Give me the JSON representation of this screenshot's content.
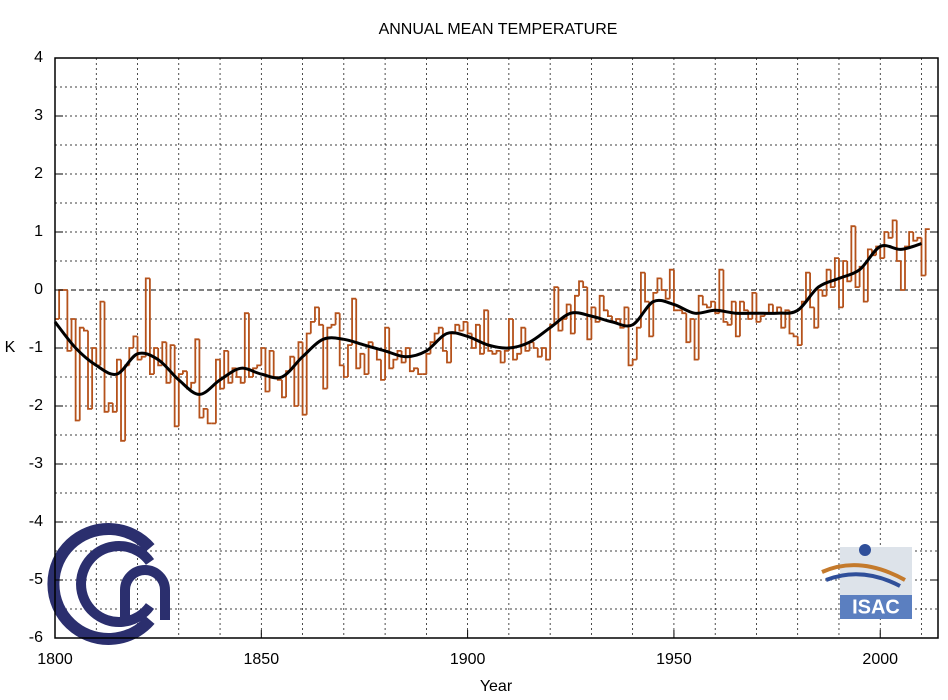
{
  "chart_data": {
    "type": "step",
    "title": "ANNUAL MEAN TEMPERATURE",
    "x_label": "Year",
    "y_label": "K",
    "logo_text": "ISAC",
    "xlim": [
      1800,
      2014
    ],
    "ylim": [
      -6,
      4
    ],
    "xticks": [
      1800,
      1850,
      1900,
      1950,
      2000
    ],
    "yticks": [
      -6,
      -5,
      -4,
      -3,
      -2,
      -1,
      0,
      1,
      2,
      3,
      4
    ],
    "xgrid": [
      1810,
      1820,
      1830,
      1840,
      1850,
      1860,
      1870,
      1880,
      1890,
      1900,
      1910,
      1920,
      1930,
      1940,
      1950,
      1960,
      1970,
      1980,
      1990,
      2000,
      2010
    ],
    "ygrid": [
      -5.5,
      -5,
      -4.5,
      -4,
      -3.5,
      -3,
      -2.5,
      -2,
      -1.5,
      -1,
      -0.5,
      0.5,
      1,
      1.5,
      2,
      2.5,
      3,
      3.5
    ],
    "grid": true,
    "zero_line": 0,
    "x": [
      1800,
      1801,
      1802,
      1803,
      1804,
      1805,
      1806,
      1807,
      1808,
      1809,
      1810,
      1811,
      1812,
      1813,
      1814,
      1815,
      1816,
      1817,
      1818,
      1819,
      1820,
      1821,
      1822,
      1823,
      1824,
      1825,
      1826,
      1827,
      1828,
      1829,
      1830,
      1831,
      1832,
      1833,
      1834,
      1835,
      1836,
      1837,
      1838,
      1839,
      1840,
      1841,
      1842,
      1843,
      1844,
      1845,
      1846,
      1847,
      1848,
      1849,
      1850,
      1851,
      1852,
      1853,
      1854,
      1855,
      1856,
      1857,
      1858,
      1859,
      1860,
      1861,
      1862,
      1863,
      1864,
      1865,
      1866,
      1867,
      1868,
      1869,
      1870,
      1871,
      1872,
      1873,
      1874,
      1875,
      1876,
      1877,
      1878,
      1879,
      1880,
      1881,
      1882,
      1883,
      1884,
      1885,
      1886,
      1887,
      1888,
      1889,
      1890,
      1891,
      1892,
      1893,
      1894,
      1895,
      1896,
      1897,
      1898,
      1899,
      1900,
      1901,
      1902,
      1903,
      1904,
      1905,
      1906,
      1907,
      1908,
      1909,
      1910,
      1911,
      1912,
      1913,
      1914,
      1915,
      1916,
      1917,
      1918,
      1919,
      1920,
      1921,
      1922,
      1923,
      1924,
      1925,
      1926,
      1927,
      1928,
      1929,
      1930,
      1931,
      1932,
      1933,
      1934,
      1935,
      1936,
      1937,
      1938,
      1939,
      1940,
      1941,
      1942,
      1943,
      1944,
      1945,
      1946,
      1947,
      1948,
      1949,
      1950,
      1951,
      1952,
      1953,
      1954,
      1955,
      1956,
      1957,
      1958,
      1959,
      1960,
      1961,
      1962,
      1963,
      1964,
      1965,
      1966,
      1967,
      1968,
      1969,
      1970,
      1971,
      1972,
      1973,
      1974,
      1975,
      1976,
      1977,
      1978,
      1979,
      1980,
      1981,
      1982,
      1983,
      1984,
      1985,
      1986,
      1987,
      1988,
      1989,
      1990,
      1991,
      1992,
      1993,
      1994,
      1995,
      1996,
      1997,
      1998,
      1999,
      2000,
      2001,
      2002,
      2003,
      2004,
      2005,
      2006,
      2007,
      2008,
      2009,
      2010,
      2011
    ],
    "series": [
      {
        "color": "#b5521b",
        "style": "step",
        "values": [
          -0.5,
          0,
          0,
          -1.05,
          -0.5,
          -2.25,
          -0.65,
          -0.7,
          -2.05,
          -1.0,
          -1.3,
          -0.2,
          -2.1,
          -1.95,
          -2.1,
          -1.2,
          -2.6,
          -1.3,
          -1.0,
          -0.8,
          -1.2,
          -1.15,
          0.2,
          -1.45,
          -1.0,
          -1.3,
          -0.9,
          -1.6,
          -0.95,
          -2.35,
          -1.45,
          -1.4,
          -1.7,
          -1.6,
          -0.85,
          -2.2,
          -2.05,
          -2.3,
          -2.3,
          -1.2,
          -1.7,
          -1.05,
          -1.6,
          -1.35,
          -1.5,
          -1.6,
          -0.4,
          -1.5,
          -1.35,
          -1.3,
          -1.0,
          -1.75,
          -1.05,
          -1.5,
          -1.55,
          -1.85,
          -1.4,
          -1.15,
          -2.0,
          -0.9,
          -2.15,
          -0.75,
          -0.55,
          -0.3,
          -0.6,
          -1.7,
          -0.65,
          -0.6,
          -0.4,
          -1.3,
          -1.5,
          -0.95,
          -0.15,
          -1.35,
          -1.1,
          -1.45,
          -0.9,
          -1.0,
          -1.2,
          -1.55,
          -0.65,
          -1.35,
          -1.2,
          -1.05,
          -1.25,
          -1.0,
          -1.4,
          -1.35,
          -1.45,
          -1.45,
          -1.1,
          -0.9,
          -0.75,
          -0.65,
          -1.05,
          -1.25,
          -0.75,
          -0.6,
          -0.7,
          -0.55,
          -0.75,
          -1.0,
          -0.6,
          -1.1,
          -0.35,
          -1.05,
          -1.1,
          -1.05,
          -1.25,
          -1.05,
          -0.5,
          -1.2,
          -1.1,
          -0.65,
          -1.05,
          -0.9,
          -1.0,
          -1.15,
          -1.0,
          -1.2,
          -0.6,
          0.05,
          -0.7,
          -0.5,
          -0.25,
          -0.75,
          -0.1,
          0.15,
          0.05,
          -0.85,
          -0.3,
          -0.55,
          -0.1,
          -0.35,
          -0.45,
          -0.55,
          -0.5,
          -0.65,
          -0.3,
          -1.3,
          -1.2,
          -0.65,
          0.3,
          -0.2,
          -0.8,
          -0.05,
          0.2,
          0.0,
          -0.15,
          0.35,
          -0.35,
          -0.35,
          -0.4,
          -0.9,
          -0.5,
          -1.2,
          -0.1,
          -0.25,
          -0.3,
          -0.2,
          -0.4,
          0.35,
          -0.55,
          -0.6,
          -0.2,
          -0.8,
          -0.2,
          -0.35,
          -0.5,
          -0.05,
          -0.55,
          -0.45,
          -0.4,
          -0.25,
          -0.4,
          -0.3,
          -0.65,
          -0.35,
          -0.75,
          -0.8,
          -0.95,
          -0.2,
          0.3,
          -0.3,
          -0.65,
          0.0,
          -0.1,
          0.35,
          0.05,
          0.55,
          -0.3,
          0.5,
          0.15,
          1.1,
          0.05,
          0.4,
          -0.2,
          0.7,
          0.6,
          0.75,
          0.55,
          1.0,
          0.9,
          1.2,
          0.5,
          0.0,
          0.75,
          1.0,
          0.85,
          0.9,
          0.25,
          1.05
        ]
      },
      {
        "color": "#000000",
        "style": "smooth",
        "x": [
          1800,
          1805,
          1810,
          1815,
          1820,
          1825,
          1830,
          1835,
          1840,
          1845,
          1850,
          1855,
          1860,
          1865,
          1870,
          1875,
          1880,
          1885,
          1890,
          1895,
          1900,
          1905,
          1910,
          1915,
          1920,
          1925,
          1930,
          1935,
          1940,
          1945,
          1950,
          1955,
          1960,
          1965,
          1970,
          1975,
          1980,
          1985,
          1990,
          1995,
          2000,
          2005,
          2010
        ],
        "values": [
          -0.55,
          -1.0,
          -1.3,
          -1.45,
          -1.1,
          -1.2,
          -1.55,
          -1.8,
          -1.55,
          -1.35,
          -1.45,
          -1.5,
          -1.15,
          -0.85,
          -0.85,
          -0.95,
          -1.05,
          -1.15,
          -1.05,
          -0.75,
          -0.8,
          -0.95,
          -1.0,
          -0.9,
          -0.65,
          -0.4,
          -0.45,
          -0.55,
          -0.6,
          -0.2,
          -0.25,
          -0.4,
          -0.35,
          -0.4,
          -0.4,
          -0.4,
          -0.35,
          0.05,
          0.2,
          0.35,
          0.75,
          0.7,
          0.8
        ]
      }
    ]
  }
}
